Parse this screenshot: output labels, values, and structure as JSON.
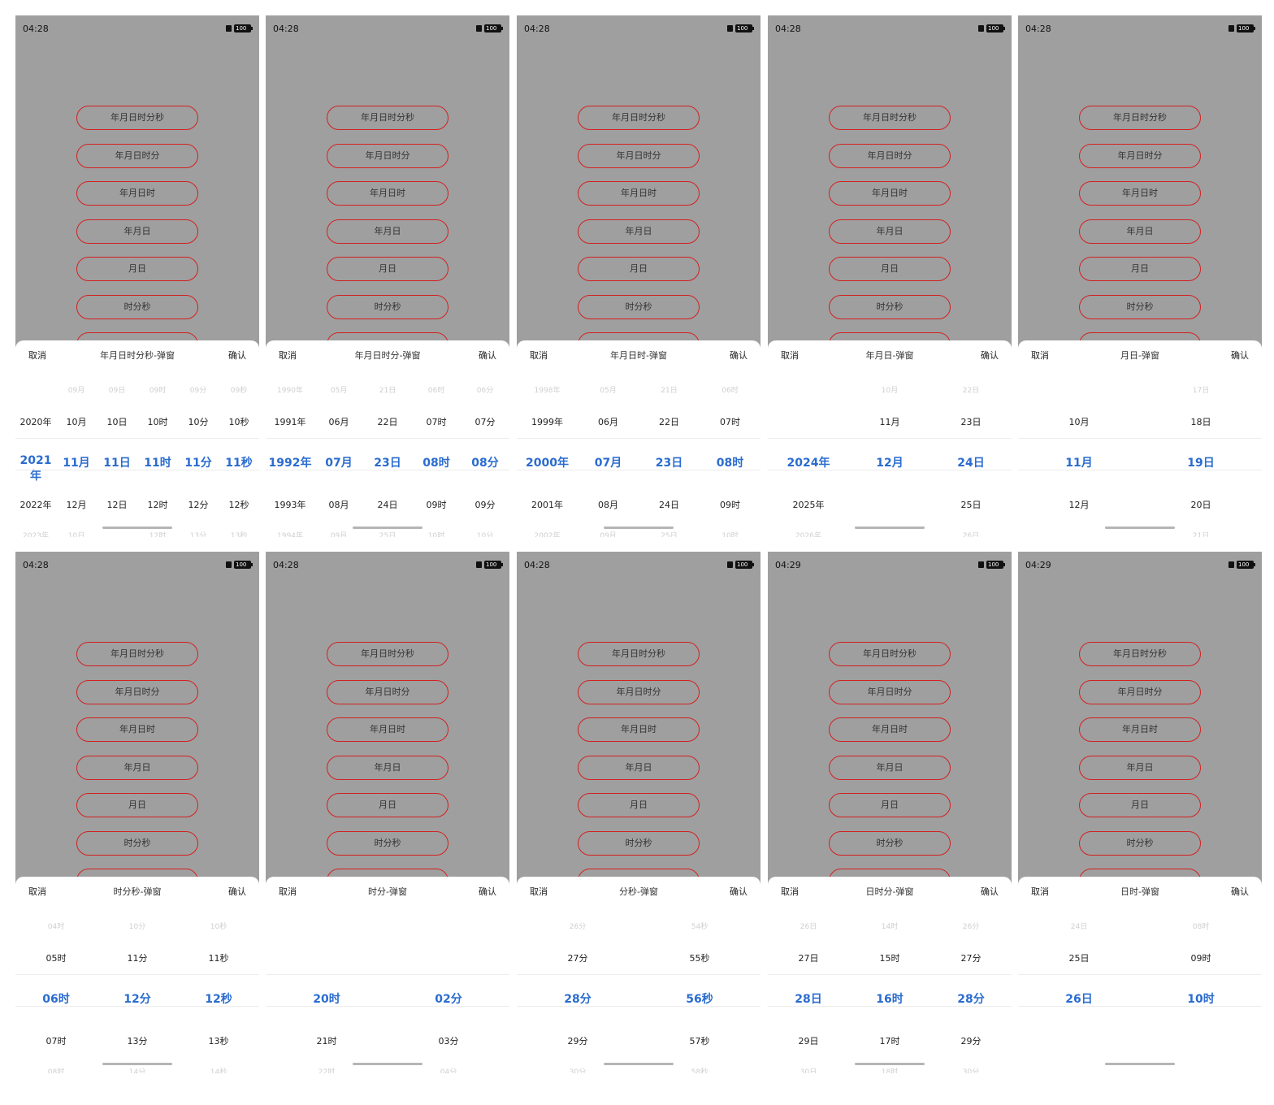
{
  "buttons": [
    "年月日时分秒",
    "年月日时分",
    "年月日时",
    "年月日",
    "月日",
    "时分秒"
  ],
  "cancel": "取消",
  "confirm": "确认",
  "colors": {
    "accent": "#2a6ccf",
    "button_border": "#d32020",
    "overlay": "#9f9f9f"
  },
  "icons": [
    "sim-icon",
    "battery-icon"
  ],
  "screens": [
    {
      "time": "04:28",
      "battery": "100",
      "title": "年月日时分秒-弹窗",
      "columns": [
        [
          "",
          "2020年",
          "2021年",
          "2022年",
          "2023年"
        ],
        [
          "09月",
          "10月",
          "11月",
          "12月",
          "10日"
        ],
        [
          "09日",
          "10日",
          "11日",
          "12日",
          ""
        ],
        [
          "09时",
          "10时",
          "11时",
          "12时",
          "12时"
        ],
        [
          "09分",
          "10分",
          "11分",
          "12分",
          "13分"
        ],
        [
          "09秒",
          "10秒",
          "11秒",
          "12秒",
          "13秒"
        ]
      ]
    },
    {
      "time": "04:28",
      "battery": "100",
      "title": "年月日时分-弹窗",
      "columns": [
        [
          "1990年",
          "1991年",
          "1992年",
          "1993年",
          "1994年"
        ],
        [
          "05月",
          "06月",
          "07月",
          "08月",
          "09月"
        ],
        [
          "21日",
          "22日",
          "23日",
          "24日",
          "25日"
        ],
        [
          "06时",
          "07时",
          "08时",
          "09时",
          "10时"
        ],
        [
          "06分",
          "07分",
          "08分",
          "09分",
          "10分"
        ]
      ]
    },
    {
      "time": "04:28",
      "battery": "100",
      "title": "年月日时-弹窗",
      "columns": [
        [
          "1998年",
          "1999年",
          "2000年",
          "2001年",
          "2002年"
        ],
        [
          "05月",
          "06月",
          "07月",
          "08月",
          "09月"
        ],
        [
          "21日",
          "22日",
          "23日",
          "24日",
          "25日"
        ],
        [
          "06时",
          "07时",
          "08时",
          "09时",
          "10时"
        ]
      ]
    },
    {
      "time": "04:28",
      "battery": "100",
      "title": "年月日-弹窗",
      "columns": [
        [
          "",
          "",
          "2024年",
          "2025年",
          "2026年"
        ],
        [
          "10月",
          "11月",
          "12月",
          "",
          ""
        ],
        [
          "22日",
          "23日",
          "24日",
          "25日",
          "26日"
        ]
      ]
    },
    {
      "time": "04:28",
      "battery": "100",
      "title": "月日-弹窗",
      "columns": [
        [
          "",
          "10月",
          "11月",
          "12月",
          ""
        ],
        [
          "17日",
          "18日",
          "19日",
          "20日",
          "21日"
        ]
      ]
    },
    {
      "time": "04:28",
      "battery": "100",
      "title": "时分秒-弹窗",
      "columns": [
        [
          "04时",
          "05时",
          "06时",
          "07时",
          "08时"
        ],
        [
          "10分",
          "11分",
          "12分",
          "13分",
          "14分"
        ],
        [
          "10秒",
          "11秒",
          "12秒",
          "13秒",
          "14秒"
        ]
      ]
    },
    {
      "time": "04:28",
      "battery": "100",
      "title": "时分-弹窗",
      "columns": [
        [
          "",
          "",
          "20时",
          "21时",
          "22时"
        ],
        [
          "",
          "",
          "02分",
          "03分",
          "04分"
        ]
      ]
    },
    {
      "time": "04:28",
      "battery": "100",
      "title": "分秒-弹窗",
      "columns": [
        [
          "26分",
          "27分",
          "28分",
          "29分",
          "30分"
        ],
        [
          "54秒",
          "55秒",
          "56秒",
          "57秒",
          "58秒"
        ]
      ]
    },
    {
      "time": "04:29",
      "battery": "100",
      "title": "日时分-弹窗",
      "columns": [
        [
          "26日",
          "27日",
          "28日",
          "29日",
          "30日"
        ],
        [
          "14时",
          "15时",
          "16时",
          "17时",
          "18时"
        ],
        [
          "26分",
          "27分",
          "28分",
          "29分",
          "30分"
        ]
      ]
    },
    {
      "time": "04:29",
      "battery": "100",
      "title": "日时-弹窗",
      "columns": [
        [
          "24日",
          "25日",
          "26日",
          "",
          ""
        ],
        [
          "08时",
          "09时",
          "10时",
          "",
          ""
        ]
      ]
    }
  ]
}
